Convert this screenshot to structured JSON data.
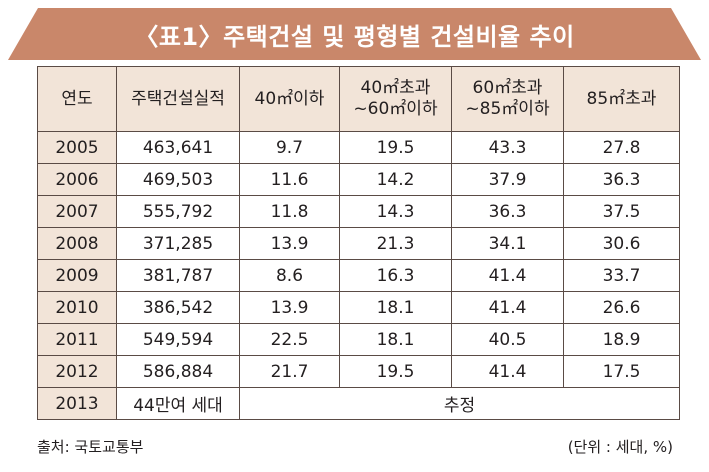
{
  "title": "〈표1〉주택건설 및 평형별 건설비율 추이",
  "colors": {
    "banner": "#c9876a",
    "header_bg": "#f2e4d8",
    "border": "#5a4b45"
  },
  "table": {
    "headers": [
      "연도",
      "주택건설실적",
      "40㎡이하",
      "40㎡초과\n~60㎡이하",
      "60㎡초과\n~85㎡이하",
      "85㎡초과"
    ],
    "rows": [
      [
        "2005",
        "463,641",
        "9.7",
        "19.5",
        "43.3",
        "27.8"
      ],
      [
        "2006",
        "469,503",
        "11.6",
        "14.2",
        "37.9",
        "36.3"
      ],
      [
        "2007",
        "555,792",
        "11.8",
        "14.3",
        "36.3",
        "37.5"
      ],
      [
        "2008",
        "371,285",
        "13.9",
        "21.3",
        "34.1",
        "30.6"
      ],
      [
        "2009",
        "381,787",
        "8.6",
        "16.3",
        "41.4",
        "33.7"
      ],
      [
        "2010",
        "386,542",
        "13.9",
        "18.1",
        "41.4",
        "26.6"
      ],
      [
        "2011",
        "549,594",
        "22.5",
        "18.1",
        "40.5",
        "18.9"
      ],
      [
        "2012",
        "586,884",
        "21.7",
        "19.5",
        "41.4",
        "17.5"
      ]
    ],
    "last_row": {
      "year": "2013",
      "total": "44만여 세대",
      "note": "추정"
    }
  },
  "footer": {
    "source": "출처: 국토교통부",
    "unit": "(단위 : 세대, %)"
  }
}
